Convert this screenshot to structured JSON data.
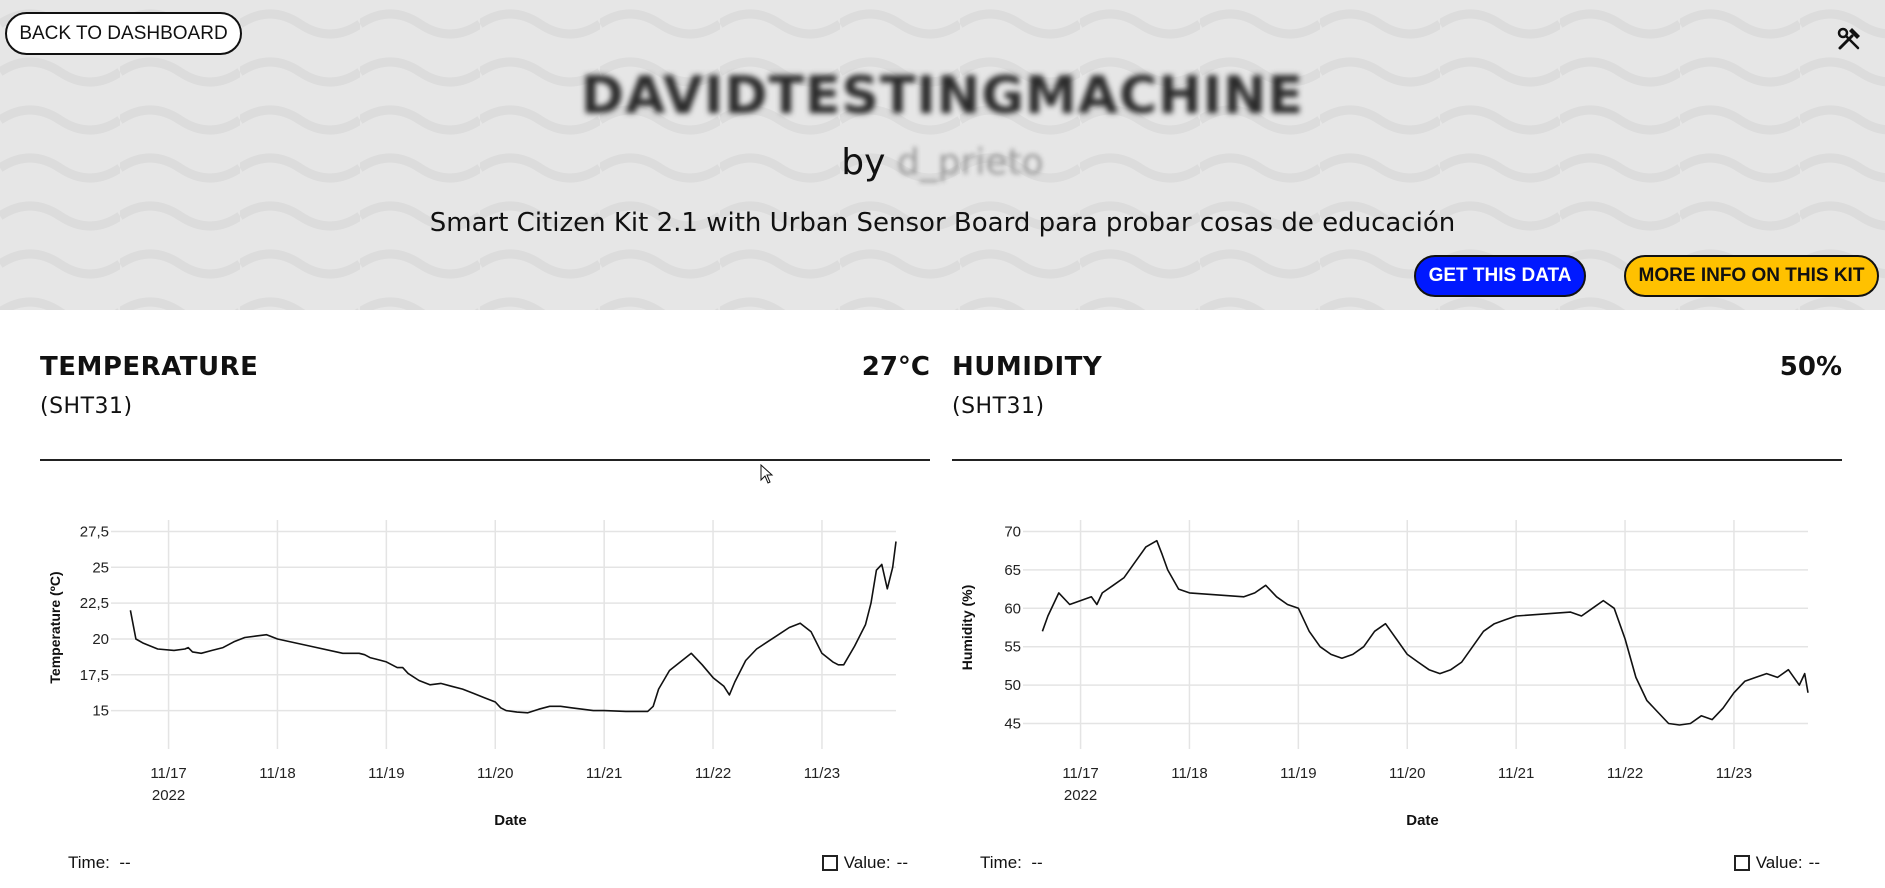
{
  "header": {
    "back_label": "BACK TO DASHBOARD",
    "kit_name": "DAVIDTESTINGMACHINE",
    "by_prefix": "by",
    "owner": "d_prieto",
    "description": "Smart Citizen Kit 2.1 with Urban Sensor Board para probar cosas de educación",
    "get_data_label": "GET THIS DATA",
    "more_info_label": "MORE INFO ON THIS KIT",
    "colors": {
      "get_data_bg": "#0019ff",
      "more_info_bg": "#ffc100"
    },
    "icons": [
      "tools-icon"
    ]
  },
  "sensors": [
    {
      "title": "TEMPERATURE",
      "value": "27°C",
      "sensor": "(SHT31)",
      "time_label": "Time:",
      "time_value": "--",
      "value_label": "Value:",
      "value_value": "--"
    },
    {
      "title": "HUMIDITY",
      "value": "50%",
      "sensor": "(SHT31)",
      "time_label": "Time:",
      "time_value": "--",
      "value_label": "Value:",
      "value_value": "--"
    }
  ],
  "chart_data": [
    {
      "type": "line",
      "xlabel": "Date",
      "ylabel": "Temperature (ºC)",
      "xlim": [
        16.6,
        23.68
      ],
      "ylim": [
        13.3,
        28.3
      ],
      "x_ticks": [
        17,
        18,
        19,
        20,
        21,
        22,
        23
      ],
      "x_tick_labels": [
        "11/17",
        "11/18",
        "11/19",
        "11/20",
        "11/21",
        "11/22",
        "11/23"
      ],
      "x_year_label": "2022",
      "y_ticks": [
        15,
        17.5,
        20,
        22.5,
        25,
        27.5
      ],
      "y_tick_labels": [
        "15",
        "17,5",
        "20",
        "22,5",
        "25",
        "27,5"
      ],
      "grid": true,
      "series": [
        {
          "x": [
            16.65,
            16.7,
            16.77,
            16.9,
            17.05,
            17.15,
            17.18,
            17.22,
            17.3,
            17.4,
            17.5,
            17.6,
            17.7,
            17.8,
            17.9,
            18.0,
            18.3,
            18.6,
            18.75,
            18.8,
            18.85,
            18.9,
            19.0,
            19.1,
            19.15,
            19.2,
            19.3,
            19.4,
            19.5,
            19.6,
            19.7,
            19.8,
            19.9,
            20.0,
            20.05,
            20.1,
            20.2,
            20.3,
            20.4,
            20.5,
            20.6,
            20.7,
            20.8,
            20.9,
            21.0,
            21.2,
            21.4,
            21.45,
            21.5,
            21.6,
            21.7,
            21.8,
            21.9,
            22.0,
            22.1,
            22.15,
            22.2,
            22.3,
            22.4,
            22.5,
            22.6,
            22.7,
            22.8,
            22.9,
            23.0,
            23.1,
            23.15,
            23.2,
            23.3,
            23.4,
            23.45,
            23.5,
            23.55,
            23.6,
            23.65,
            23.68
          ],
          "y": [
            22,
            20,
            19.7,
            19.3,
            19.2,
            19.3,
            19.4,
            19.1,
            19.0,
            19.2,
            19.4,
            19.8,
            20.1,
            20.2,
            20.3,
            20.0,
            19.5,
            19.0,
            19.0,
            18.9,
            18.7,
            18.6,
            18.4,
            18.0,
            18.0,
            17.6,
            17.1,
            16.8,
            16.9,
            16.7,
            16.5,
            16.2,
            15.9,
            15.6,
            15.2,
            15.0,
            14.9,
            14.85,
            15.1,
            15.3,
            15.3,
            15.2,
            15.1,
            15.0,
            15.0,
            14.95,
            14.95,
            15.3,
            16.5,
            17.8,
            18.4,
            19.0,
            18.2,
            17.3,
            16.7,
            16.1,
            17.0,
            18.5,
            19.3,
            19.8,
            20.3,
            20.8,
            21.1,
            20.5,
            19.0,
            18.4,
            18.2,
            18.2,
            19.5,
            21.0,
            22.5,
            24.8,
            25.2,
            23.5,
            25.0,
            26.8
          ]
        }
      ]
    },
    {
      "type": "line",
      "xlabel": "Date",
      "ylabel": "Humidity (%)",
      "xlim": [
        16.6,
        23.68
      ],
      "ylim": [
        43.5,
        71.5
      ],
      "x_ticks": [
        17,
        18,
        19,
        20,
        21,
        22,
        23
      ],
      "x_tick_labels": [
        "11/17",
        "11/18",
        "11/19",
        "11/20",
        "11/21",
        "11/22",
        "11/23"
      ],
      "x_year_label": "2022",
      "y_ticks": [
        45,
        50,
        55,
        60,
        65,
        70
      ],
      "y_tick_labels": [
        "45",
        "50",
        "55",
        "60",
        "65",
        "70"
      ],
      "grid": true,
      "series": [
        {
          "x": [
            16.65,
            16.7,
            16.8,
            16.9,
            17.0,
            17.1,
            17.15,
            17.2,
            17.3,
            17.4,
            17.5,
            17.6,
            17.7,
            17.75,
            17.8,
            17.9,
            18.0,
            18.5,
            18.6,
            18.7,
            18.8,
            18.9,
            19.0,
            19.1,
            19.2,
            19.3,
            19.4,
            19.5,
            19.6,
            19.7,
            19.8,
            19.9,
            20.0,
            20.1,
            20.2,
            20.3,
            20.4,
            20.5,
            20.6,
            20.7,
            20.8,
            20.9,
            21.0,
            21.5,
            21.6,
            21.7,
            21.8,
            21.9,
            22.0,
            22.1,
            22.2,
            22.3,
            22.4,
            22.5,
            22.6,
            22.7,
            22.8,
            22.9,
            23.0,
            23.1,
            23.2,
            23.3,
            23.4,
            23.5,
            23.6,
            23.65,
            23.68
          ],
          "y": [
            57,
            59,
            62,
            60.5,
            61,
            61.5,
            60.5,
            62,
            63,
            64,
            66,
            68,
            68.8,
            67,
            65,
            62.5,
            62,
            61.5,
            62,
            63,
            61.5,
            60.5,
            60,
            57,
            55,
            54,
            53.5,
            54,
            55,
            57,
            58,
            56,
            54,
            53,
            52,
            51.5,
            52,
            53,
            55,
            57,
            58,
            58.5,
            59,
            59.5,
            59,
            60,
            61,
            60,
            56,
            51,
            48,
            46.5,
            45,
            44.8,
            45,
            46,
            45.5,
            47,
            49,
            50.5,
            51,
            51.5,
            51,
            52,
            50,
            51.5,
            49
          ]
        }
      ]
    }
  ]
}
